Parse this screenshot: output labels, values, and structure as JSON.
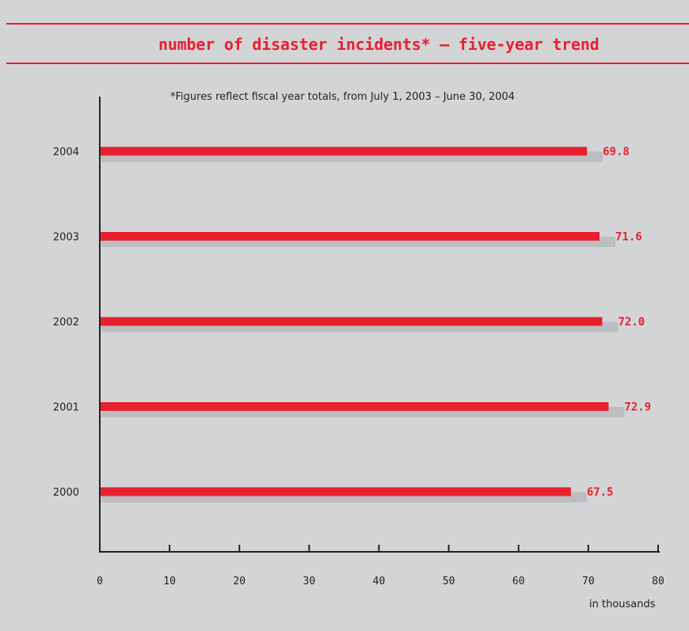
{
  "chart_data": {
    "type": "bar",
    "orientation": "horizontal",
    "title": "number of disaster incidents* — five-year trend",
    "subtitle": "*Figures reflect fiscal year totals, from July 1, 2003 – June 30, 2004",
    "xlabel": "in thousands",
    "ylabel": "",
    "categories": [
      "2004",
      "2003",
      "2002",
      "2001",
      "2000"
    ],
    "values": [
      69.8,
      71.6,
      72.0,
      72.9,
      67.5
    ],
    "data_labels": [
      "69.8",
      "71.6",
      "72.0",
      "72.9",
      "67.5"
    ],
    "xlim": [
      0,
      80
    ],
    "x_ticks": [
      "0",
      "10",
      "20",
      "30",
      "40",
      "50",
      "60",
      "70",
      "80"
    ],
    "grid": false,
    "bar_color": "#e8202e",
    "accent_color": "#e8202e",
    "background_color": "#d3d4d6"
  }
}
